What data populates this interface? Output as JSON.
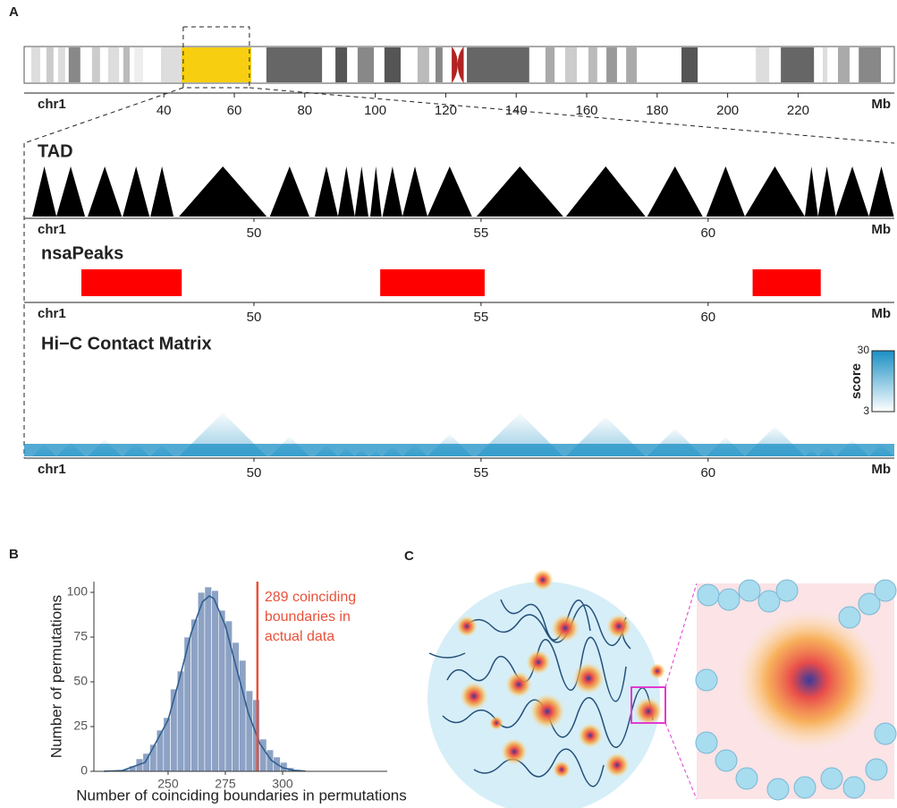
{
  "panel_labels": [
    "A",
    "B",
    "C"
  ],
  "chart_data": [
    {
      "type": "ideogram",
      "label": "chr1",
      "unit": "Mb",
      "xlim": [
        0.36,
        247.3
      ],
      "xticks": [
        40,
        60,
        80,
        100,
        120,
        140,
        160,
        180,
        200,
        220
      ],
      "bands": [
        {
          "start": 2.4,
          "end": 4.9,
          "color": "#dddddd"
        },
        {
          "start": 6.7,
          "end": 8.7,
          "color": "#cccccc"
        },
        {
          "start": 10.0,
          "end": 12.0,
          "color": "#dddddd"
        },
        {
          "start": 13.0,
          "end": 16.3,
          "color": "#888888"
        },
        {
          "start": 19.6,
          "end": 21.9,
          "color": "#cccccc"
        },
        {
          "start": 24.2,
          "end": 27.3,
          "color": "#dddddd"
        },
        {
          "start": 28.5,
          "end": 30.3,
          "color": "#bbbbbb"
        },
        {
          "start": 31.6,
          "end": 34.1,
          "color": "#eeeeee"
        },
        {
          "start": 39.2,
          "end": 45.0,
          "color": "#dddddd"
        },
        {
          "start": 69.1,
          "end": 84.9,
          "color": "#666666"
        },
        {
          "start": 88.7,
          "end": 92.0,
          "color": "#555555"
        },
        {
          "start": 95.0,
          "end": 99.6,
          "color": "#888888"
        },
        {
          "start": 102.6,
          "end": 107.2,
          "color": "#555555"
        },
        {
          "start": 112.0,
          "end": 115.3,
          "color": "#bbbbbb"
        },
        {
          "start": 117.1,
          "end": 119.1,
          "color": "#888888"
        },
        {
          "start": 126.0,
          "end": 143.7,
          "color": "#666666"
        },
        {
          "start": 148.3,
          "end": 150.9,
          "color": "#aaaaaa"
        },
        {
          "start": 153.9,
          "end": 157.2,
          "color": "#cccccc"
        },
        {
          "start": 160.5,
          "end": 163.0,
          "color": "#bbbbbb"
        },
        {
          "start": 165.6,
          "end": 168.6,
          "color": "#999999"
        },
        {
          "start": 171.2,
          "end": 174.2,
          "color": "#aaaaaa"
        },
        {
          "start": 186.9,
          "end": 191.5,
          "color": "#555555"
        },
        {
          "start": 208.0,
          "end": 211.8,
          "color": "#dddddd"
        },
        {
          "start": 215.1,
          "end": 224.5,
          "color": "#666666"
        },
        {
          "start": 227.0,
          "end": 228.3,
          "color": "#dddddd"
        },
        {
          "start": 231.3,
          "end": 234.6,
          "color": "#aaaaaa"
        },
        {
          "start": 237.2,
          "end": 243.5,
          "color": "#888888"
        }
      ],
      "centromere": [
        121.7,
        125.1
      ],
      "centromere_color": "#b22222",
      "highlight": [
        45.0,
        64.8
      ],
      "highlight_color": "#f7cf10"
    },
    {
      "type": "tad",
      "title": "TAD",
      "label": "chr1",
      "unit": "Mb",
      "xlim": [
        44.94,
        64.1
      ],
      "xticks": [
        50,
        55,
        60
      ],
      "color": "#000000",
      "tads": [
        [
          45.12,
          45.65
        ],
        [
          45.65,
          46.28
        ],
        [
          46.34,
          47.09
        ],
        [
          47.11,
          47.7
        ],
        [
          47.72,
          48.23
        ],
        [
          48.35,
          50.28
        ],
        [
          50.35,
          51.22
        ],
        [
          51.34,
          51.85
        ],
        [
          51.85,
          52.22
        ],
        [
          52.22,
          52.52
        ],
        [
          52.56,
          52.81
        ],
        [
          52.83,
          53.27
        ],
        [
          53.27,
          53.82
        ],
        [
          53.82,
          54.8
        ],
        [
          54.9,
          56.81
        ],
        [
          56.87,
          58.62
        ],
        [
          58.66,
          59.88
        ],
        [
          59.96,
          60.81
        ],
        [
          60.81,
          62.13
        ],
        [
          62.13,
          62.42
        ],
        [
          62.42,
          62.81
        ],
        [
          62.81,
          63.54
        ],
        [
          63.54,
          64.09
        ]
      ]
    },
    {
      "type": "peaks",
      "title": "nsaPeaks",
      "label": "chr1",
      "unit": "Mb",
      "xlim": [
        44.94,
        64.1
      ],
      "xticks": [
        50,
        55,
        60
      ],
      "color": "#ff0000",
      "peaks": [
        [
          46.2,
          48.41
        ],
        [
          52.78,
          55.08
        ],
        [
          60.98,
          62.48
        ]
      ]
    },
    {
      "type": "heatmap",
      "title": "Hi−C Contact Matrix",
      "label": "chr1",
      "unit": "Mb",
      "xlim": [
        44.94,
        64.1
      ],
      "xticks": [
        50,
        55,
        60
      ],
      "color": "#1a8fc4",
      "colorbar": {
        "label": "score",
        "lim": [
          3,
          30
        ],
        "ticks": [
          3,
          30
        ]
      }
    },
    {
      "type": "histogram",
      "xlabel": "Number of coinciding boundaries in permutations",
      "ylabel": "Number of permutations",
      "xlim": [
        217.6,
        345.7
      ],
      "ylim": [
        0,
        106
      ],
      "xticks": [
        250,
        275,
        300
      ],
      "yticks": [
        0,
        25,
        50,
        75,
        100
      ],
      "color": "#8da2c4",
      "bins": [
        230,
        233,
        236,
        239,
        242,
        245,
        248,
        251,
        254,
        257,
        260,
        263,
        266,
        269,
        272,
        275,
        278,
        281,
        284,
        287,
        290,
        293,
        296,
        299,
        302,
        305,
        308
      ],
      "counts": [
        1,
        3,
        7,
        10,
        15,
        23,
        30,
        46,
        56,
        75,
        85,
        100,
        103,
        101,
        90,
        84,
        72,
        62,
        45,
        40,
        18,
        12,
        8,
        5,
        2,
        1
      ],
      "kde": {
        "color": "#2f5f8f",
        "x": [
          222,
          230,
          240,
          250,
          255,
          260,
          265,
          268,
          270,
          275,
          280,
          285,
          290,
          295,
          300,
          305,
          310
        ],
        "y": [
          0.03,
          0.41,
          5.0,
          28.7,
          51.7,
          77.0,
          94.7,
          98,
          96.5,
          81.4,
          56.9,
          32.7,
          15.6,
          6.2,
          2.0,
          0.55,
          0.12
        ]
      },
      "vline": {
        "value": 289,
        "color": "#e8513a",
        "annotation": [
          "289 coinciding",
          "boundaries in",
          "actual data"
        ]
      }
    }
  ]
}
